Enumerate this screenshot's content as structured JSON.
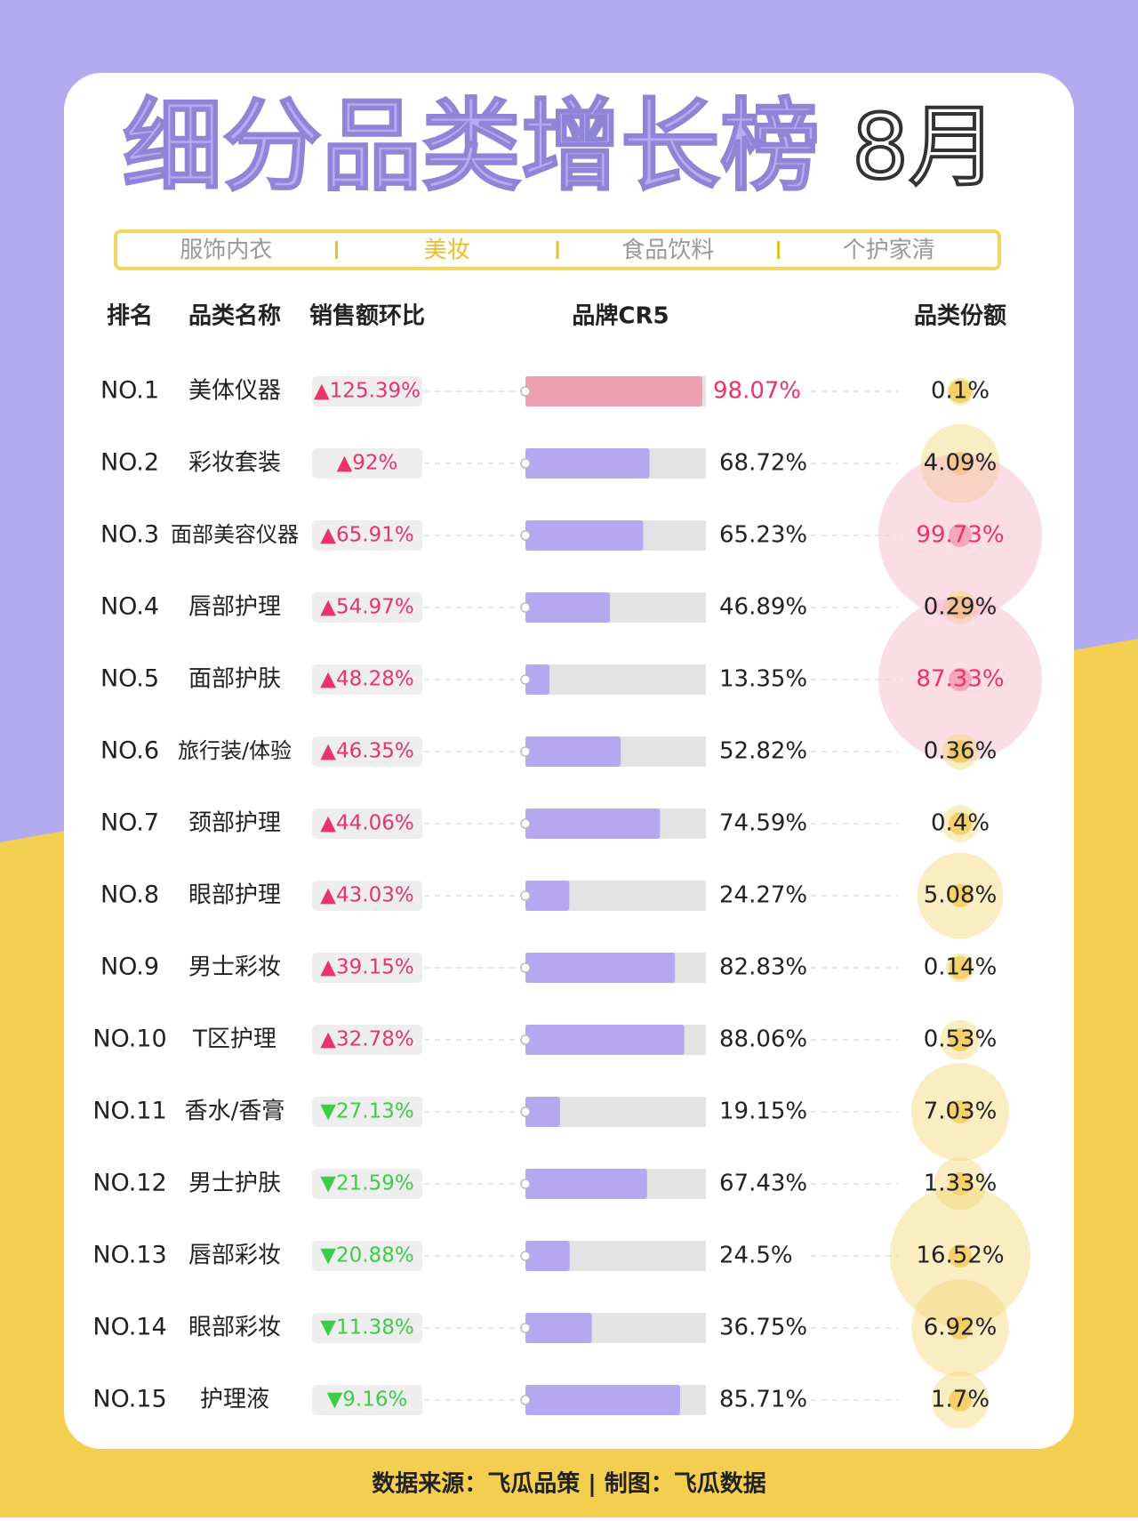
{
  "header": {
    "title": "细分品类增长榜",
    "month": "8月"
  },
  "tabs": [
    "服饰内衣",
    "美妆",
    "食品饮料",
    "个护家清"
  ],
  "active_tab": 1,
  "columns": [
    "排名",
    "品类名称",
    "销售额环比",
    "品牌CR5",
    "品类份额"
  ],
  "table": {
    "rows": [
      {
        "rank": "NO.1",
        "name": "美体仪器",
        "growth": "▲125.39%",
        "cr5": {
          "value": 98.07,
          "label": "98.07%"
        },
        "share": {
          "value": 0.1,
          "label": "0.1%"
        }
      },
      {
        "rank": "NO.2",
        "name": "彩妆套装",
        "growth": "▲92%",
        "cr5": {
          "value": 68.72,
          "label": "68.72%"
        },
        "share": {
          "value": 4.09,
          "label": "4.09%"
        }
      },
      {
        "rank": "NO.3",
        "name": "面部美容仪器",
        "growth": "▲65.91%",
        "cr5": {
          "value": 65.23,
          "label": "65.23%"
        },
        "share": {
          "value": 99.73,
          "label": "99.73%"
        }
      },
      {
        "rank": "NO.4",
        "name": "唇部护理",
        "growth": "▲54.97%",
        "cr5": {
          "value": 46.89,
          "label": "46.89%"
        },
        "share": {
          "value": 0.29,
          "label": "0.29%"
        }
      },
      {
        "rank": "NO.5",
        "name": "面部护肤",
        "growth": "▲48.28%",
        "cr5": {
          "value": 13.35,
          "label": "13.35%"
        },
        "share": {
          "value": 87.33,
          "label": "87.33%"
        }
      },
      {
        "rank": "NO.6",
        "name": "旅行装/体验",
        "growth": "▲46.35%",
        "cr5": {
          "value": 52.82,
          "label": "52.82%"
        },
        "share": {
          "value": 0.36,
          "label": "0.36%"
        }
      },
      {
        "rank": "NO.7",
        "name": "颈部护理",
        "growth": "▲44.06%",
        "cr5": {
          "value": 74.59,
          "label": "74.59%"
        },
        "share": {
          "value": 0.4,
          "label": "0.4%"
        }
      },
      {
        "rank": "NO.8",
        "name": "眼部护理",
        "growth": "▲43.03%",
        "cr5": {
          "value": 24.27,
          "label": "24.27%"
        },
        "share": {
          "value": 5.08,
          "label": "5.08%"
        }
      },
      {
        "rank": "NO.9",
        "name": "男士彩妆",
        "growth": "▲39.15%",
        "cr5": {
          "value": 82.83,
          "label": "82.83%"
        },
        "share": {
          "value": 0.14,
          "label": "0.14%"
        }
      },
      {
        "rank": "NO.10",
        "name": "T区护理",
        "growth": "▲32.78%",
        "cr5": {
          "value": 88.06,
          "label": "88.06%"
        },
        "share": {
          "value": 0.53,
          "label": "0.53%"
        }
      },
      {
        "rank": "NO.11",
        "name": "香水/香膏",
        "growth": "▼27.13%",
        "cr5": {
          "value": 19.15,
          "label": "19.15%"
        },
        "share": {
          "value": 7.03,
          "label": "7.03%"
        }
      },
      {
        "rank": "NO.12",
        "name": "男士护肤",
        "growth": "▼21.59%",
        "cr5": {
          "value": 67.43,
          "label": "67.43%"
        },
        "share": {
          "value": 1.33,
          "label": "1.33%"
        }
      },
      {
        "rank": "NO.13",
        "name": "唇部彩妆",
        "growth": "▼20.88%",
        "cr5": {
          "value": 24.5,
          "label": "24.5%"
        },
        "share": {
          "value": 16.52,
          "label": "16.52%"
        }
      },
      {
        "rank": "NO.14",
        "name": "眼部彩妆",
        "growth": "▼11.38%",
        "cr5": {
          "value": 36.75,
          "label": "36.75%"
        },
        "share": {
          "value": 6.92,
          "label": "6.92%"
        }
      },
      {
        "rank": "NO.15",
        "name": "护理液",
        "growth": "▼9.16%",
        "cr5": {
          "value": 85.71,
          "label": "85.71%"
        },
        "share": {
          "value": 1.7,
          "label": "1.7%"
        }
      }
    ]
  },
  "footer": "数据来源：飞瓜品策 | 制图：飞瓜数据"
}
